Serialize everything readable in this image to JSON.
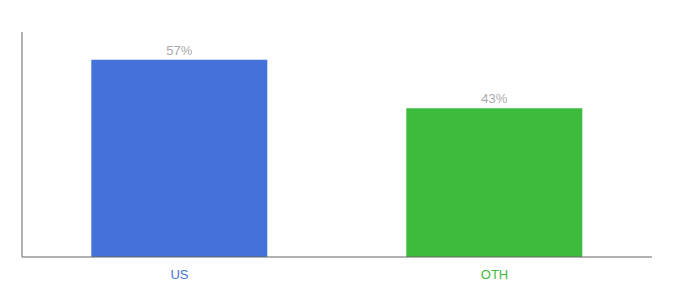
{
  "chart_data": {
    "type": "bar",
    "categories": [
      "US",
      "OTH"
    ],
    "values": [
      57,
      43
    ],
    "value_labels": [
      "57%",
      "43%"
    ],
    "colors": [
      "#4472db",
      "#3dbb3d"
    ],
    "ylim": [
      0,
      65
    ],
    "data_labels": true,
    "tick_labels": "x"
  }
}
